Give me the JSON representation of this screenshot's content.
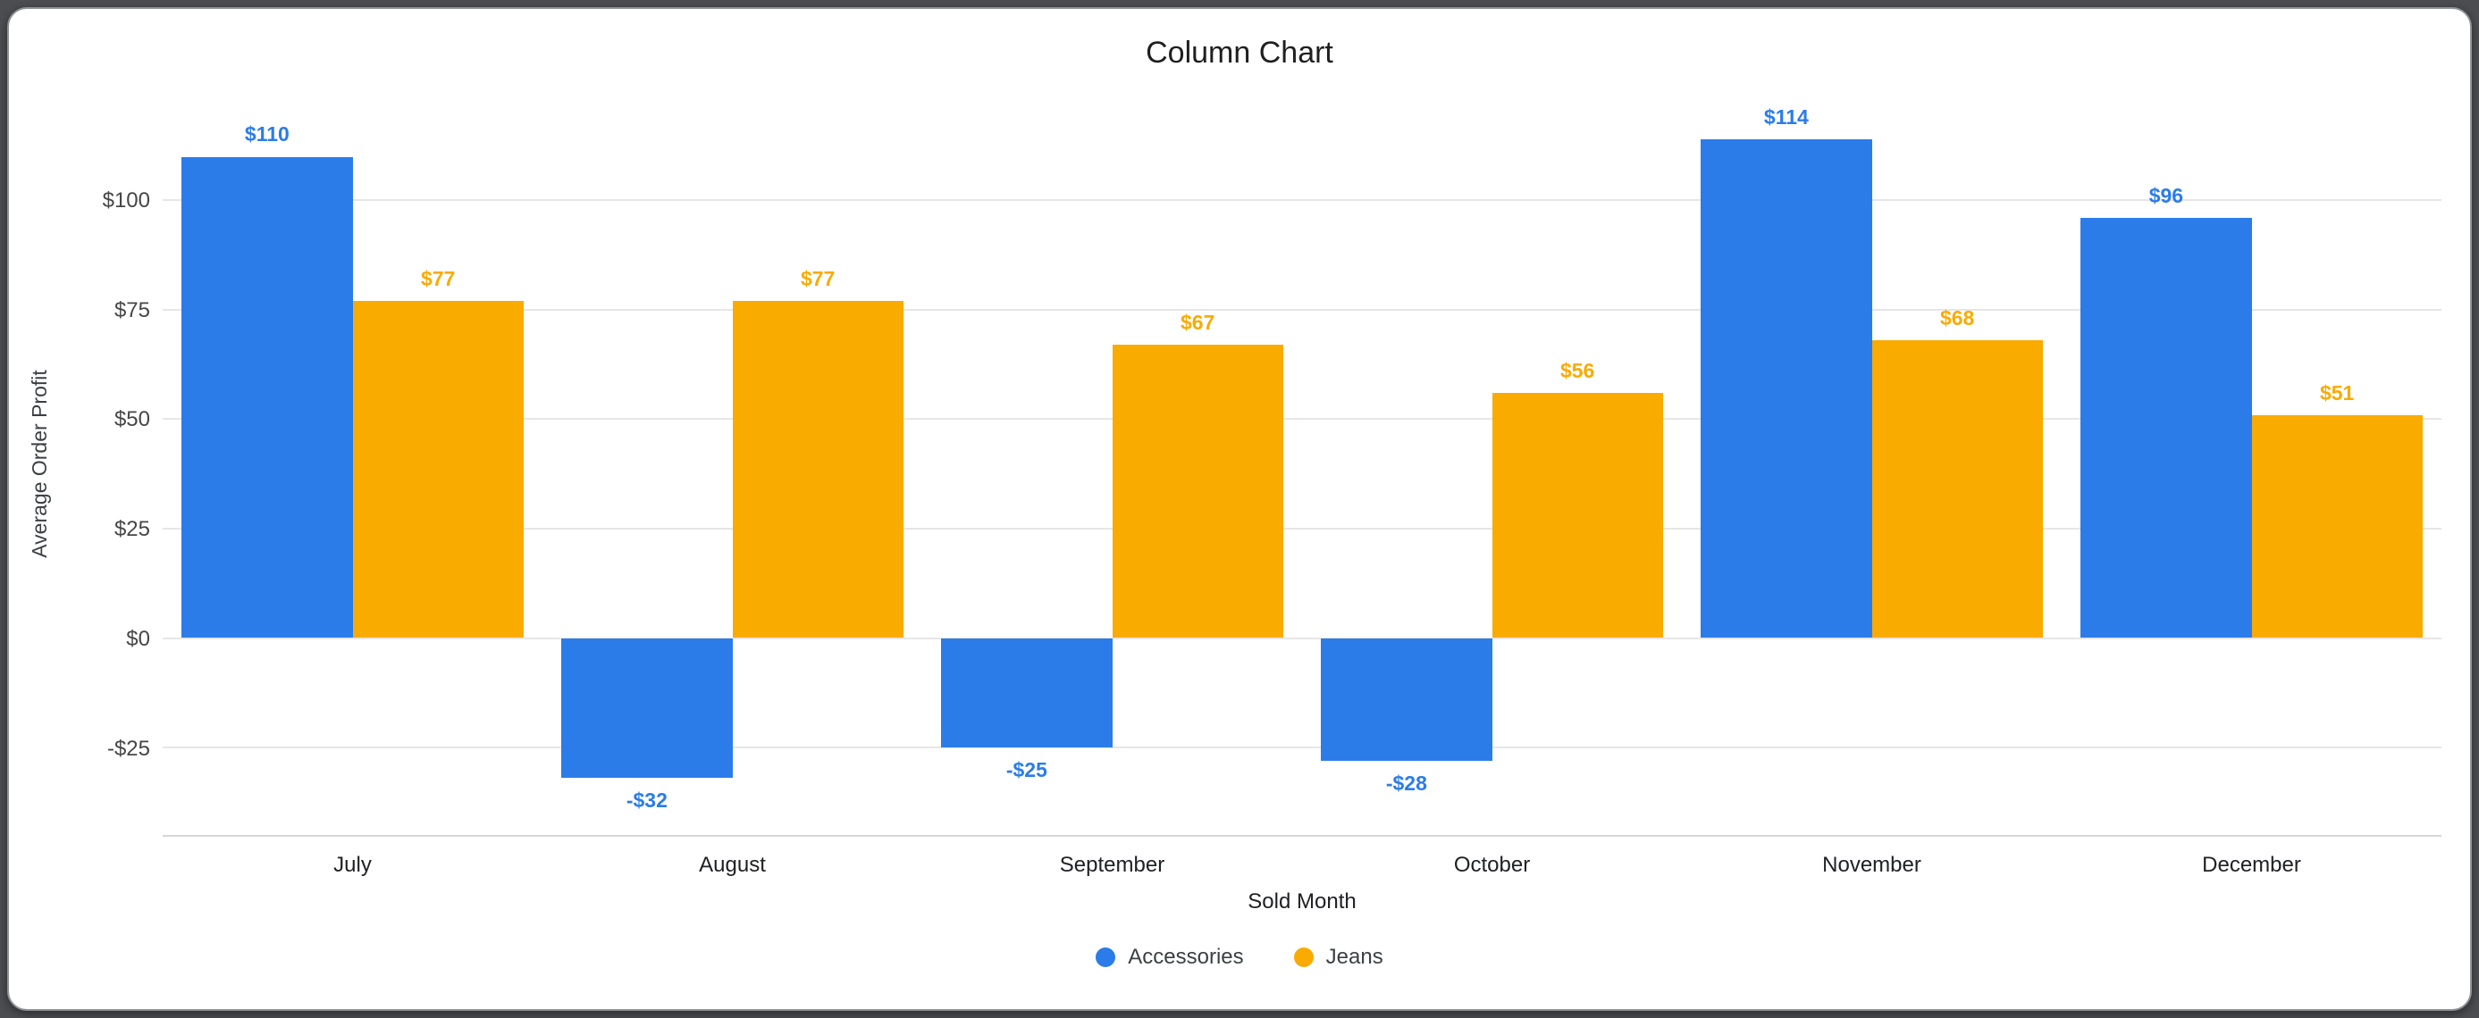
{
  "chart_data": {
    "type": "bar",
    "title": "Column Chart",
    "xlabel": "Sold Month",
    "ylabel": "Average Order Profit",
    "categories": [
      "July",
      "August",
      "September",
      "October",
      "November",
      "December"
    ],
    "series": [
      {
        "name": "Accessories",
        "color": "#2b7ce9",
        "values": [
          110,
          -32,
          -25,
          -28,
          114,
          96
        ]
      },
      {
        "name": "Jeans",
        "color": "#f9ab00",
        "values": [
          77,
          77,
          67,
          56,
          68,
          51
        ]
      }
    ],
    "data_labels": {
      "Accessories": [
        "$110",
        "-$32",
        "-$25",
        "-$28",
        "$114",
        "$96"
      ],
      "Jeans": [
        "$77",
        "$77",
        "$67",
        "$56",
        "$68",
        "$51"
      ]
    },
    "value_prefix": "$",
    "yticks": [
      -25,
      0,
      25,
      50,
      75,
      100
    ],
    "ytick_labels": [
      "-$25",
      "$0",
      "$25",
      "$50",
      "$75",
      "$100"
    ],
    "ylim": [
      -45,
      125
    ],
    "grid": true,
    "legend_position": "bottom"
  },
  "legend": {
    "items": [
      {
        "label": "Accessories",
        "color": "#2b7ce9"
      },
      {
        "label": "Jeans",
        "color": "#f9ab00"
      }
    ]
  }
}
